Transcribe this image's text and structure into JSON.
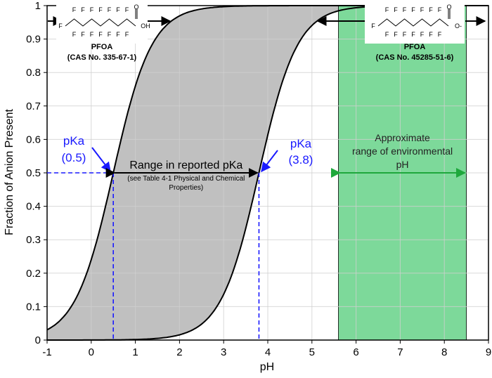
{
  "chart_data": {
    "type": "area",
    "xlabel": "pH",
    "ylabel": "Fraction of Anion Present",
    "xlim": [
      -1,
      9
    ],
    "ylim": [
      0,
      1
    ],
    "x_ticks": [
      "-1",
      "0",
      "1",
      "2",
      "3",
      "4",
      "5",
      "6",
      "7",
      "8",
      "9"
    ],
    "y_ticks": [
      "0",
      "0.1",
      "0.2",
      "0.3",
      "0.4",
      "0.5",
      "0.6",
      "0.7",
      "0.8",
      "0.9",
      "1"
    ],
    "grid": true,
    "series": [
      {
        "pKa": 0.5,
        "label": [
          "pKa",
          "(0.5)"
        ]
      },
      {
        "pKa": 3.8,
        "label": [
          "pKa",
          "(3.8)"
        ]
      }
    ],
    "shaded_range_pKa": [
      0.5,
      3.8
    ],
    "shaded_range_text": [
      "Range in reported pKa",
      "(see Table 4-1 Physical and Chemical",
      "Properties)"
    ],
    "environmental_pH_range": [
      5.6,
      8.5
    ],
    "environmental_pH_text": [
      "Approximate",
      "range of environmental",
      "pH"
    ],
    "molecules": [
      {
        "name": "PFOA",
        "cas": "(CAS No. 335-67-1)",
        "form": "acid",
        "tail_atom": "F",
        "head_atoms": "OH",
        "fluorines": "F"
      },
      {
        "name": "PFOA",
        "cas": "(CAS No. 45285-51-6)",
        "form": "anion",
        "tail_atom": "F",
        "head_atoms": "O-",
        "fluorines": "F"
      }
    ],
    "colors": {
      "range_fill": "#c0c0c0",
      "env_fill": "#7dd99a",
      "env_arrow": "#1ea83c",
      "pka_lines": "#1a1aff",
      "grid": "#d0d0d0"
    }
  }
}
